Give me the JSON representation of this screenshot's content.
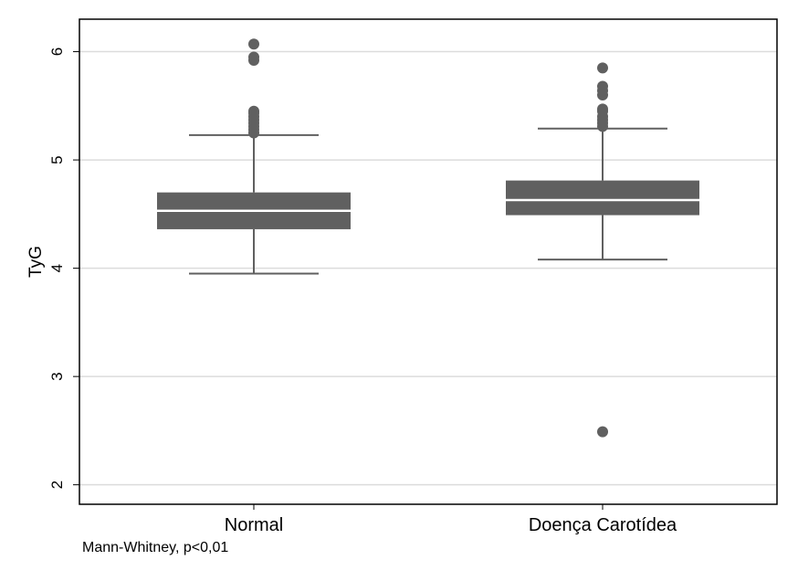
{
  "chart_data": {
    "type": "box",
    "ylabel": "TyG",
    "xlabel": "",
    "ylim": [
      1.82,
      6.3
    ],
    "yticks": [
      2,
      3,
      4,
      5,
      6
    ],
    "grid": true,
    "color": "#606060",
    "median_color": "#ffffff",
    "categories": [
      "Normal",
      "Doença Carotídea"
    ],
    "boxes": [
      {
        "category": "Normal",
        "whisker_low": 3.95,
        "q1": 4.36,
        "median": 4.53,
        "q3": 4.7,
        "whisker_high": 5.23,
        "outliers": [
          5.25,
          5.28,
          5.31,
          5.34,
          5.37,
          5.4,
          5.43,
          5.45,
          5.92,
          5.95,
          6.07
        ]
      },
      {
        "category": "Doença Carotídea",
        "whisker_low": 4.08,
        "q1": 4.49,
        "median": 4.63,
        "q3": 4.81,
        "whisker_high": 5.29,
        "outliers": [
          2.49,
          5.31,
          5.34,
          5.37,
          5.4,
          5.45,
          5.47,
          5.6,
          5.64,
          5.68,
          5.85
        ]
      }
    ]
  },
  "footnote": "Mann-Whitney, p<0,01"
}
